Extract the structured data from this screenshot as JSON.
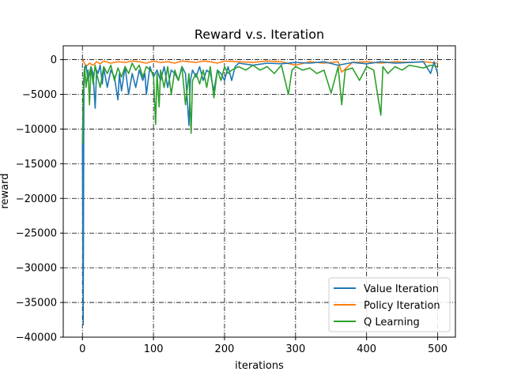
{
  "chart_data": {
    "type": "line",
    "title": "Reward v.s. Iteration",
    "xlabel": "iterations",
    "ylabel": "reward",
    "xlim": [
      -27,
      525
    ],
    "ylim": [
      -40000,
      2000
    ],
    "xticks": [
      0,
      100,
      200,
      300,
      400,
      500
    ],
    "yticks": [
      0,
      -5000,
      -10000,
      -15000,
      -20000,
      -25000,
      -30000,
      -35000,
      -40000
    ],
    "grid": true,
    "legend_position": "lower-right",
    "series": [
      {
        "name": "Value Iteration",
        "color": "#1f77b4",
        "x": [
          0,
          1,
          2,
          3,
          5,
          8,
          12,
          15,
          18,
          20,
          22,
          25,
          28,
          30,
          35,
          40,
          45,
          50,
          52,
          55,
          60,
          65,
          70,
          75,
          80,
          85,
          88,
          90,
          95,
          100,
          105,
          110,
          115,
          120,
          125,
          130,
          135,
          140,
          145,
          150,
          152,
          155,
          160,
          165,
          170,
          175,
          180,
          185,
          190,
          195,
          200,
          205,
          210,
          215,
          220,
          240,
          260,
          280,
          300,
          320,
          340,
          360,
          380,
          400,
          420,
          440,
          460,
          480,
          490,
          495,
          500
        ],
        "y": [
          -12000,
          -38200,
          -4000,
          -1500,
          -800,
          -3000,
          -1000,
          -2000,
          -7000,
          -1500,
          -2000,
          -800,
          -3500,
          -1200,
          -4000,
          -1500,
          -2500,
          -5800,
          -2000,
          -4500,
          -1000,
          -5000,
          -2000,
          -4000,
          -1500,
          -3000,
          -2000,
          -5000,
          -1000,
          -2500,
          -1500,
          -3000,
          -1000,
          -4000,
          -1500,
          -2000,
          -3000,
          -1000,
          -2000,
          -9500,
          -3000,
          -1500,
          -2500,
          -1000,
          -3000,
          -1500,
          -2000,
          -4500,
          -1500,
          -2000,
          -3000,
          -1000,
          -3000,
          -1000,
          -500,
          -800,
          -500,
          -600,
          -400,
          -500,
          -300,
          -800,
          -400,
          -600,
          -300,
          -500,
          -400,
          -300,
          -2000,
          -300,
          -2000
        ]
      },
      {
        "name": "Policy Iteration",
        "color": "#ff7f0e",
        "x": [
          0,
          2,
          5,
          10,
          15,
          20,
          25,
          30,
          40,
          50,
          60,
          70,
          80,
          90,
          100,
          110,
          120,
          130,
          140,
          150,
          160,
          170,
          180,
          190,
          200,
          220,
          240,
          260,
          280,
          300,
          320,
          340,
          360,
          365,
          380,
          400,
          420,
          440,
          460,
          480,
          500
        ],
        "y": [
          0,
          -300,
          -1000,
          -500,
          -800,
          -300,
          -600,
          -200,
          -500,
          -300,
          -400,
          -200,
          -300,
          -500,
          -200,
          -400,
          -300,
          -500,
          -200,
          -300,
          -400,
          -200,
          -300,
          -500,
          -200,
          -300,
          -400,
          -200,
          -300,
          -800,
          -300,
          -500,
          -300,
          -1800,
          -400,
          -300,
          -500,
          -300,
          -400,
          -300,
          -500
        ]
      },
      {
        "name": "Q Learning",
        "color": "#2ca02c",
        "x": [
          0,
          1,
          2,
          3,
          5,
          8,
          10,
          12,
          15,
          18,
          20,
          25,
          30,
          35,
          40,
          45,
          50,
          55,
          60,
          65,
          70,
          75,
          80,
          85,
          90,
          95,
          100,
          103,
          105,
          108,
          110,
          115,
          120,
          125,
          130,
          135,
          140,
          145,
          150,
          153,
          155,
          160,
          165,
          170,
          175,
          180,
          185,
          190,
          195,
          200,
          205,
          210,
          220,
          230,
          240,
          250,
          260,
          270,
          280,
          290,
          295,
          300,
          310,
          320,
          330,
          340,
          350,
          360,
          365,
          370,
          380,
          390,
          400,
          410,
          420,
          423,
          430,
          440,
          450,
          460,
          470,
          480,
          490,
          500
        ],
        "y": [
          -12100,
          -5500,
          -2500,
          -1000,
          -4000,
          -1500,
          -6500,
          -1000,
          -3500,
          -800,
          -2000,
          -4000,
          -1000,
          -2000,
          -800,
          -3000,
          -1200,
          -2500,
          -1000,
          -2000,
          -500,
          -1500,
          -800,
          -2500,
          -1000,
          -1500,
          -2000,
          -9300,
          -2000,
          -6800,
          -1500,
          -4000,
          -1000,
          -5000,
          -1500,
          -3000,
          -1000,
          -6500,
          -2000,
          -10600,
          -3000,
          -2000,
          -3500,
          -1500,
          -4000,
          -1000,
          -5500,
          -1500,
          -3000,
          -1000,
          -2000,
          -1500,
          -1000,
          -1500,
          -800,
          -1500,
          -1000,
          -2000,
          -800,
          -5000,
          -1500,
          -1000,
          -1500,
          -1200,
          -2000,
          -1500,
          -4800,
          -1000,
          -6500,
          -1500,
          -1200,
          -3000,
          -1000,
          -1500,
          -8000,
          -1000,
          -2000,
          -1000,
          -1500,
          -800,
          -1000,
          -1200,
          -800,
          -1000
        ]
      }
    ]
  }
}
